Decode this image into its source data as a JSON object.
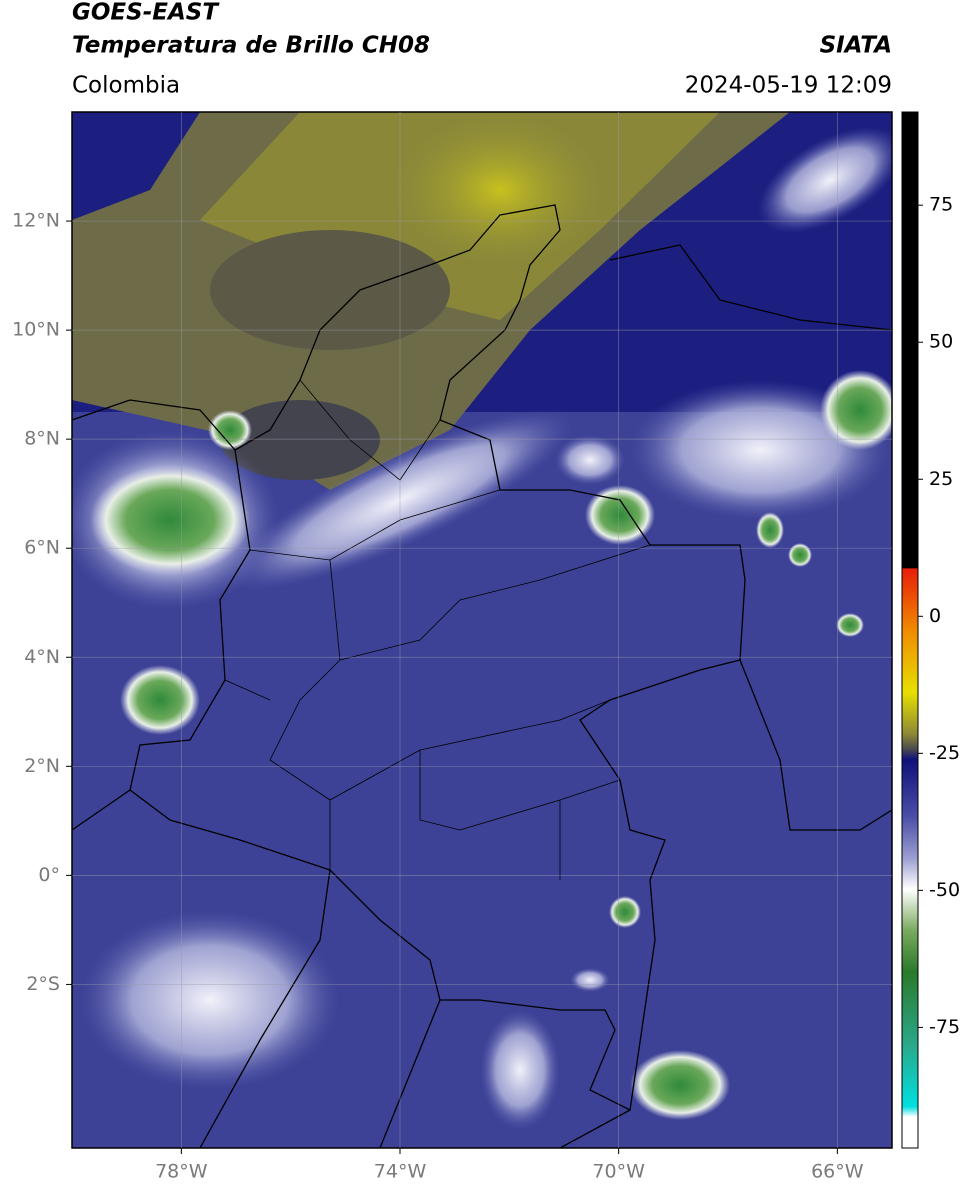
{
  "header": {
    "satellite": "GOES-EAST",
    "product": "Temperatura de Brillo CH08",
    "source": "SIATA",
    "region": "Colombia",
    "datetime": "2024-05-19 12:09"
  },
  "map": {
    "xlim": [
      -80,
      -65
    ],
    "ylim": [
      -5,
      14
    ],
    "xticks": [
      {
        "value": -78,
        "label": "78°W"
      },
      {
        "value": -74,
        "label": "74°W"
      },
      {
        "value": -70,
        "label": "70°W"
      },
      {
        "value": -66,
        "label": "66°W"
      }
    ],
    "yticks": [
      {
        "value": 12,
        "label": "12°N"
      },
      {
        "value": 10,
        "label": "10°N"
      },
      {
        "value": 8,
        "label": "8°N"
      },
      {
        "value": 6,
        "label": "6°N"
      },
      {
        "value": 4,
        "label": "4°N"
      },
      {
        "value": 2,
        "label": "2°N"
      },
      {
        "value": 0,
        "label": "0°"
      },
      {
        "value": -2,
        "label": "2°S"
      }
    ]
  },
  "colorbar": {
    "lim": [
      -97,
      92
    ],
    "ticks": [
      75,
      50,
      25,
      0,
      -25,
      -50,
      -75
    ]
  }
}
